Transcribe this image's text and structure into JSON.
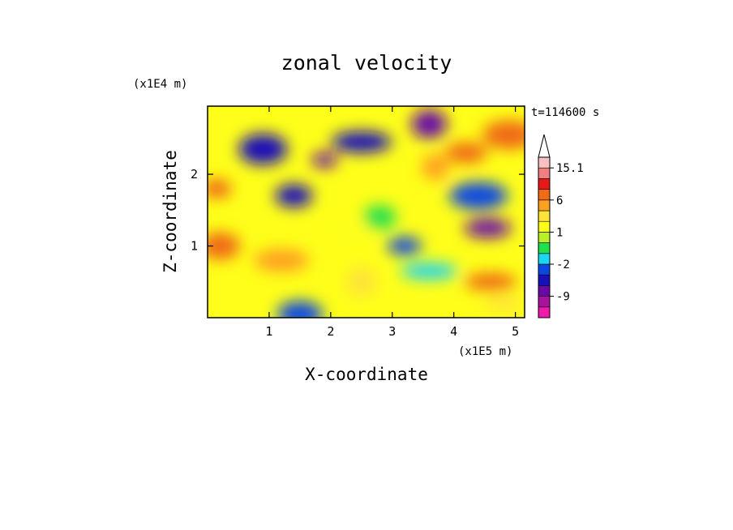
{
  "chart_data": {
    "type": "heatmap",
    "title": "zonal velocity",
    "xlabel": "X-coordinate",
    "ylabel": "Z-coordinate",
    "x_unit": "(x1E5 m)",
    "y_unit": "(x1E4 m)",
    "time_label": "t=114600 s",
    "xlim": [
      0,
      5.15
    ],
    "ylim": [
      0,
      2.95
    ],
    "x_ticks": [
      "1",
      "2",
      "3",
      "4",
      "5"
    ],
    "y_ticks": [
      "1",
      "2"
    ],
    "colorbar": {
      "levels": [
        "-12",
        "-9",
        "-6",
        "-4",
        "-2",
        "0",
        "0.5",
        "1",
        "1.5",
        "3",
        "6",
        "9",
        "12",
        "15.1"
      ],
      "tick_labels": [
        "15.1",
        "6",
        "1",
        "-2",
        "-9"
      ],
      "colors": [
        "#ee1aa8",
        "#a8129c",
        "#6a0aa6",
        "#1a10b8",
        "#0a48e0",
        "#1ad6f2",
        "#20e050",
        "#b8f028",
        "#fefe1a",
        "#fee438",
        "#fea020",
        "#f06a18",
        "#e81818",
        "#f08080",
        "#f8c0c0"
      ],
      "extend": "max"
    },
    "field_features": [
      {
        "x": 1.9,
        "z": 2.2,
        "value": -9
      },
      {
        "x": 1.4,
        "z": 1.7,
        "value": -6
      },
      {
        "x": 0.9,
        "z": 2.35,
        "value": -6
      },
      {
        "x": 2.5,
        "z": 2.45,
        "value": -6
      },
      {
        "x": 3.6,
        "z": 2.7,
        "value": -9
      },
      {
        "x": 4.55,
        "z": 1.25,
        "value": -9
      },
      {
        "x": 4.4,
        "z": 1.7,
        "value": -4
      },
      {
        "x": 3.2,
        "z": 1.0,
        "value": -4
      },
      {
        "x": 1.5,
        "z": 0.05,
        "value": -4
      },
      {
        "x": 3.6,
        "z": 0.65,
        "value": -2
      },
      {
        "x": 2.8,
        "z": 1.4,
        "value": 0
      },
      {
        "x": 2.3,
        "z": 1.2,
        "value": 1
      },
      {
        "x": 1.2,
        "z": 0.8,
        "value": 3
      },
      {
        "x": 2.5,
        "z": 0.5,
        "value": 1.5
      },
      {
        "x": 4.2,
        "z": 2.3,
        "value": 6
      },
      {
        "x": 4.9,
        "z": 2.55,
        "value": 6
      },
      {
        "x": 0.15,
        "z": 1.8,
        "value": 6
      },
      {
        "x": 0.2,
        "z": 1.0,
        "value": 6
      },
      {
        "x": 4.6,
        "z": 0.5,
        "value": 6
      },
      {
        "x": 3.7,
        "z": 2.1,
        "value": 3
      },
      {
        "x": 4.8,
        "z": 0.2,
        "value": 1.5
      }
    ]
  }
}
